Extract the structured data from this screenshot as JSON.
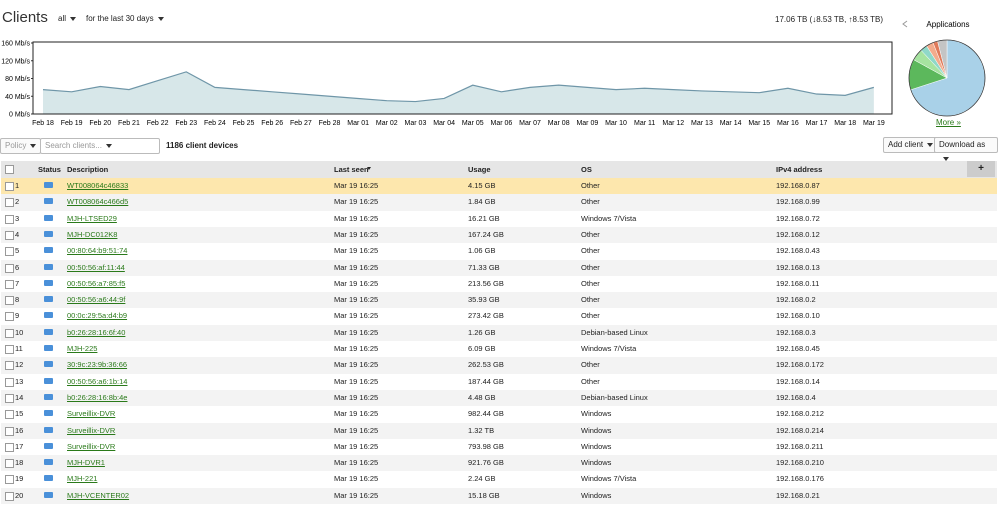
{
  "header": {
    "title": "Clients",
    "filter": "all",
    "period": "for the last 30 days",
    "totals": "17.06 TB (↓8.53 TB, ↑8.53 TB)"
  },
  "chart_data": [
    {
      "type": "area",
      "categories": [
        "Feb 18",
        "Feb 19",
        "Feb 20",
        "Feb 21",
        "Feb 22",
        "Feb 23",
        "Feb 24",
        "Feb 25",
        "Feb 26",
        "Feb 27",
        "Feb 28",
        "Mar 01",
        "Mar 02",
        "Mar 03",
        "Mar 04",
        "Mar 05",
        "Mar 06",
        "Mar 07",
        "Mar 08",
        "Mar 09",
        "Mar 10",
        "Mar 11",
        "Mar 12",
        "Mar 13",
        "Mar 14",
        "Mar 15",
        "Mar 16",
        "Mar 17",
        "Mar 18",
        "Mar 19"
      ],
      "values": [
        55,
        50,
        62,
        55,
        75,
        95,
        60,
        55,
        50,
        45,
        40,
        35,
        30,
        28,
        35,
        65,
        50,
        60,
        65,
        60,
        55,
        58,
        55,
        52,
        50,
        48,
        58,
        45,
        42,
        60
      ],
      "color": "#6f96a8",
      "fill": "#d7e7e9",
      "ylim": [
        0,
        160
      ],
      "yticks": [
        {
          "value": 0,
          "label": "0 Mb/s"
        },
        {
          "value": 40,
          "label": "40 Mb/s"
        },
        {
          "value": 80,
          "label": "80 Mb/s"
        },
        {
          "value": 120,
          "label": "120 Mb/s"
        },
        {
          "value": 160,
          "label": "160 Mb/s"
        }
      ]
    },
    {
      "type": "pie",
      "title": "Applications",
      "values": [
        70,
        13,
        5,
        3,
        3,
        2,
        4
      ],
      "colors": [
        "#a9d1e8",
        "#5cb85c",
        "#a6e3a0",
        "#8fd8c8",
        "#f3ab8c",
        "#e07a5a",
        "#c4c4c4"
      ]
    }
  ],
  "more_link": "More »",
  "toolbar": {
    "policy": "Policy",
    "search_placeholder": "Search clients...",
    "count": "1186 client devices",
    "add_client": "Add client",
    "download": "Download as"
  },
  "table": {
    "columns": [
      "Status",
      "Description",
      "Last seen",
      "Usage",
      "OS",
      "IPv4 address"
    ],
    "rows": [
      [
        "1",
        "WT008064c46833",
        "Mar 19 16:25",
        "4.15 GB",
        "Other",
        "192.168.0.87"
      ],
      [
        "2",
        "WT008064c466d5",
        "Mar 19 16:25",
        "1.84 GB",
        "Other",
        "192.168.0.99"
      ],
      [
        "3",
        "MJH-LTSED29",
        "Mar 19 16:25",
        "16.21 GB",
        "Windows 7/Vista",
        "192.168.0.72"
      ],
      [
        "4",
        "MJH-DC012K8",
        "Mar 19 16:25",
        "167.24 GB",
        "Other",
        "192.168.0.12"
      ],
      [
        "5",
        "00:80:64:b9:51:74",
        "Mar 19 16:25",
        "1.06 GB",
        "Other",
        "192.168.0.43"
      ],
      [
        "6",
        "00:50:56:af:11:44",
        "Mar 19 16:25",
        "71.33 GB",
        "Other",
        "192.168.0.13"
      ],
      [
        "7",
        "00:50:56:a7:85:f5",
        "Mar 19 16:25",
        "213.56 GB",
        "Other",
        "192.168.0.11"
      ],
      [
        "8",
        "00:50:56:a6:44:9f",
        "Mar 19 16:25",
        "35.93 GB",
        "Other",
        "192.168.0.2"
      ],
      [
        "9",
        "00:0c:29:5a:d4:b9",
        "Mar 19 16:25",
        "273.42 GB",
        "Other",
        "192.168.0.10"
      ],
      [
        "10",
        "b0:26:28:16:6f:40",
        "Mar 19 16:25",
        "1.26 GB",
        "Debian-based Linux",
        "192.168.0.3"
      ],
      [
        "11",
        "MJH-225",
        "Mar 19 16:25",
        "6.09 GB",
        "Windows 7/Vista",
        "192.168.0.45"
      ],
      [
        "12",
        "30:9c:23:9b:36:66",
        "Mar 19 16:25",
        "262.53 GB",
        "Other",
        "192.168.0.172"
      ],
      [
        "13",
        "00:50:56:a6:1b:14",
        "Mar 19 16:25",
        "187.44 GB",
        "Other",
        "192.168.0.14"
      ],
      [
        "14",
        "b0:26:28:16:8b:4e",
        "Mar 19 16:25",
        "4.48 GB",
        "Debian-based Linux",
        "192.168.0.4"
      ],
      [
        "15",
        "Surveillix-DVR",
        "Mar 19 16:25",
        "982.44 GB",
        "Windows",
        "192.168.0.212"
      ],
      [
        "16",
        "Surveillix-DVR",
        "Mar 19 16:25",
        "1.32 TB",
        "Windows",
        "192.168.0.214"
      ],
      [
        "17",
        "Surveillix-DVR",
        "Mar 19 16:25",
        "793.98 GB",
        "Windows",
        "192.168.0.211"
      ],
      [
        "18",
        "MJH-DVR1",
        "Mar 19 16:25",
        "921.76 GB",
        "Windows",
        "192.168.0.210"
      ],
      [
        "19",
        "MJH-221",
        "Mar 19 16:25",
        "2.24 GB",
        "Windows 7/Vista",
        "192.168.0.176"
      ],
      [
        "20",
        "MJH-VCENTER02",
        "Mar 19 16:25",
        "15.18 GB",
        "Windows",
        "192.168.0.21"
      ]
    ]
  }
}
